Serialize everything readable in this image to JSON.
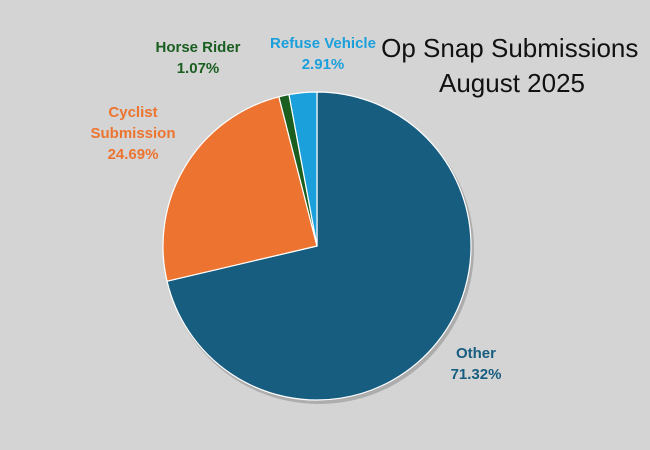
{
  "chart_data": {
    "type": "pie",
    "title_lines": [
      "Op Snap Submissions",
      "August 2025"
    ],
    "slices": [
      {
        "name": "Other",
        "label_lines": [
          "Other"
        ],
        "percent_label": "71.32%",
        "value": 71.32,
        "color": "#175d80",
        "text_color": "#175d80"
      },
      {
        "name": "Cyclist Submission",
        "label_lines": [
          "Cyclist",
          "Submission"
        ],
        "percent_label": "24.69%",
        "value": 24.69,
        "color": "#ed7430",
        "text_color": "#ed7430"
      },
      {
        "name": "Horse Rider",
        "label_lines": [
          "Horse Rider"
        ],
        "percent_label": "1.07%",
        "value": 1.07,
        "color": "#1a5e20",
        "text_color": "#1a5e20"
      },
      {
        "name": "Refuse Vehicle",
        "label_lines": [
          "Refuse Vehicle"
        ],
        "percent_label": "2.91%",
        "value": 2.91,
        "color": "#1ba0db",
        "text_color": "#1ba0db"
      }
    ],
    "start": "12 o'clock",
    "direction": "clockwise",
    "slice_border_color": "#ffffff",
    "legend": "none",
    "data_labels": "outside"
  },
  "background_color": "#d4d4d4"
}
